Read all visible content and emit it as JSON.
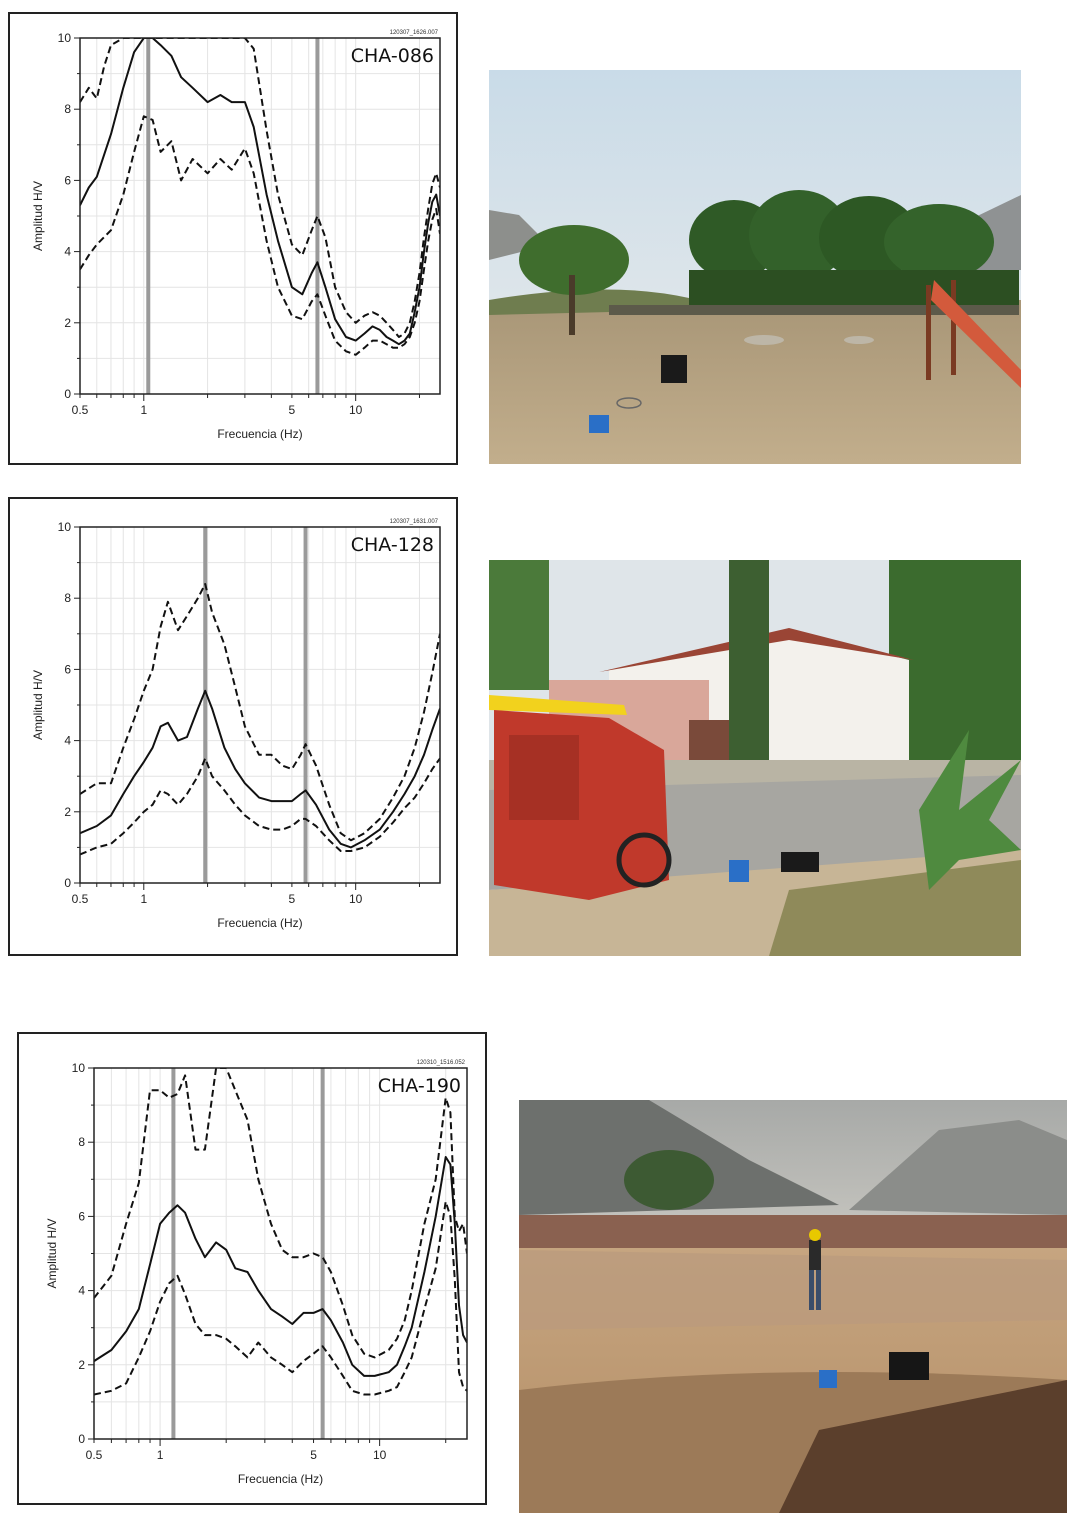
{
  "chart_data": [
    {
      "type": "line",
      "title": "CHA-086",
      "file_code": "120307_1626.007",
      "xlabel": "Frecuencia (Hz)",
      "ylabel": "Amplitud H/V",
      "xscale": "log",
      "xlim": [
        0.5,
        25
      ],
      "ylim": [
        0,
        10
      ],
      "xticks": [
        0.5,
        1,
        5,
        10
      ],
      "yticks": [
        0,
        2,
        4,
        6,
        8,
        10
      ],
      "vlines": [
        1.05,
        6.6
      ],
      "series": [
        {
          "style": "solid",
          "x": [
            0.5,
            0.55,
            0.6,
            0.7,
            0.8,
            0.9,
            1.0,
            1.1,
            1.2,
            1.35,
            1.5,
            1.7,
            2.0,
            2.3,
            2.6,
            3.0,
            3.3,
            3.8,
            4.3,
            5.0,
            5.6,
            6.2,
            6.6,
            7.2,
            8.0,
            9.0,
            10,
            11,
            12,
            13,
            14,
            15,
            16,
            17,
            18,
            19,
            20,
            21,
            22,
            23,
            24,
            25
          ],
          "y": [
            5.3,
            5.8,
            6.1,
            7.3,
            8.6,
            9.6,
            10,
            10,
            9.8,
            9.5,
            8.9,
            8.6,
            8.2,
            8.4,
            8.2,
            8.2,
            7.5,
            5.6,
            4.3,
            3.0,
            2.8,
            3.4,
            3.7,
            3.0,
            2.1,
            1.6,
            1.5,
            1.7,
            1.9,
            1.8,
            1.6,
            1.5,
            1.4,
            1.5,
            1.7,
            2.3,
            3.0,
            4.0,
            4.8,
            5.4,
            5.6,
            5.0
          ]
        },
        {
          "style": "dashed",
          "x": [
            0.5,
            0.55,
            0.6,
            0.65,
            0.7,
            0.8,
            0.9,
            1.0,
            1.1,
            1.3,
            1.5,
            1.7,
            2.0,
            2.3,
            2.6,
            3.0,
            3.3,
            3.8,
            4.3,
            5.0,
            5.6,
            6.2,
            6.6,
            7.2,
            8.0,
            9.0,
            10,
            11,
            12,
            13,
            14,
            15,
            16,
            17,
            18,
            19,
            20,
            21,
            22,
            23,
            24,
            25
          ],
          "y": [
            8.2,
            8.6,
            8.3,
            9.2,
            9.8,
            10,
            10,
            10,
            10,
            10,
            10,
            10,
            10,
            10,
            10,
            10,
            9.7,
            7.4,
            5.6,
            4.2,
            3.9,
            4.6,
            5.0,
            4.4,
            3.0,
            2.3,
            2.0,
            2.2,
            2.3,
            2.2,
            2.0,
            1.8,
            1.6,
            1.7,
            2.0,
            2.6,
            3.4,
            4.4,
            5.2,
            5.9,
            6.2,
            5.8
          ]
        },
        {
          "style": "dashed",
          "x": [
            0.5,
            0.55,
            0.6,
            0.7,
            0.8,
            0.9,
            1.0,
            1.1,
            1.2,
            1.35,
            1.5,
            1.7,
            2.0,
            2.3,
            2.6,
            3.0,
            3.3,
            3.8,
            4.3,
            5.0,
            5.6,
            6.2,
            6.6,
            7.2,
            8.0,
            9.0,
            10,
            11,
            12,
            13,
            14,
            15,
            16,
            17,
            18,
            19,
            20,
            21,
            22,
            23,
            24,
            25
          ],
          "y": [
            3.5,
            3.9,
            4.2,
            4.6,
            5.6,
            6.8,
            7.8,
            7.7,
            6.8,
            7.1,
            6.0,
            6.6,
            6.2,
            6.6,
            6.3,
            6.9,
            6.2,
            4.3,
            3.0,
            2.2,
            2.1,
            2.6,
            2.8,
            2.2,
            1.5,
            1.2,
            1.1,
            1.3,
            1.5,
            1.5,
            1.4,
            1.3,
            1.3,
            1.4,
            1.6,
            2.0,
            2.6,
            3.5,
            4.3,
            4.9,
            5.2,
            4.5
          ]
        }
      ]
    },
    {
      "type": "line",
      "title": "CHA-128",
      "file_code": "120307_1631.007",
      "xlabel": "Frecuencia (Hz)",
      "ylabel": "Amplitud H/V",
      "xscale": "log",
      "xlim": [
        0.5,
        25
      ],
      "ylim": [
        0,
        10
      ],
      "xticks": [
        0.5,
        1,
        5,
        10
      ],
      "yticks": [
        0,
        2,
        4,
        6,
        8,
        10
      ],
      "vlines": [
        1.95,
        5.8
      ],
      "series": [
        {
          "style": "solid",
          "x": [
            0.5,
            0.6,
            0.7,
            0.8,
            0.9,
            1.0,
            1.1,
            1.2,
            1.3,
            1.45,
            1.6,
            1.8,
            1.95,
            2.1,
            2.4,
            2.7,
            3.0,
            3.5,
            4.0,
            4.5,
            5.0,
            5.5,
            5.8,
            6.5,
            7.5,
            8.5,
            9.5,
            11,
            13,
            15,
            17,
            19,
            21,
            23,
            25
          ],
          "y": [
            1.4,
            1.6,
            1.9,
            2.5,
            3.0,
            3.4,
            3.8,
            4.4,
            4.5,
            4.0,
            4.1,
            4.9,
            5.4,
            4.9,
            3.8,
            3.2,
            2.8,
            2.4,
            2.3,
            2.3,
            2.3,
            2.5,
            2.6,
            2.2,
            1.5,
            1.1,
            1.0,
            1.2,
            1.5,
            2.0,
            2.5,
            3.0,
            3.6,
            4.3,
            4.9
          ]
        },
        {
          "style": "dashed",
          "x": [
            0.5,
            0.6,
            0.7,
            0.8,
            0.9,
            1.0,
            1.1,
            1.2,
            1.3,
            1.45,
            1.6,
            1.8,
            1.95,
            2.1,
            2.4,
            2.7,
            3.0,
            3.5,
            4.0,
            4.5,
            5.0,
            5.5,
            5.8,
            6.5,
            7.5,
            8.5,
            9.5,
            11,
            13,
            15,
            17,
            19,
            21,
            23,
            25
          ],
          "y": [
            2.5,
            2.8,
            2.8,
            3.8,
            4.6,
            5.4,
            6.0,
            7.2,
            7.9,
            7.1,
            7.5,
            8.0,
            8.4,
            7.6,
            6.7,
            5.5,
            4.4,
            3.6,
            3.6,
            3.3,
            3.2,
            3.6,
            3.9,
            3.3,
            2.2,
            1.4,
            1.2,
            1.4,
            1.8,
            2.4,
            3.0,
            3.8,
            4.8,
            5.9,
            7.0
          ]
        },
        {
          "style": "dashed",
          "x": [
            0.5,
            0.6,
            0.7,
            0.8,
            0.9,
            1.0,
            1.1,
            1.2,
            1.3,
            1.45,
            1.6,
            1.8,
            1.95,
            2.1,
            2.4,
            2.7,
            3.0,
            3.5,
            4.0,
            4.5,
            5.0,
            5.5,
            5.8,
            6.5,
            7.5,
            8.5,
            9.5,
            11,
            13,
            15,
            17,
            19,
            21,
            23,
            25
          ],
          "y": [
            0.8,
            1.0,
            1.1,
            1.4,
            1.7,
            2.0,
            2.2,
            2.6,
            2.5,
            2.2,
            2.5,
            3.0,
            3.5,
            3.0,
            2.6,
            2.2,
            1.9,
            1.6,
            1.5,
            1.5,
            1.6,
            1.8,
            1.8,
            1.6,
            1.2,
            0.9,
            0.9,
            1.0,
            1.3,
            1.7,
            2.1,
            2.4,
            2.8,
            3.2,
            3.5
          ]
        }
      ]
    },
    {
      "type": "line",
      "title": "CHA-190",
      "file_code": "120310_1516.052",
      "xlabel": "Frecuencia (Hz)",
      "ylabel": "Amplitud H/V",
      "xscale": "log",
      "xlim": [
        0.5,
        25
      ],
      "ylim": [
        0,
        10
      ],
      "xticks": [
        0.5,
        1,
        5,
        10
      ],
      "yticks": [
        0,
        2,
        4,
        6,
        8,
        10
      ],
      "vlines": [
        1.15,
        5.5
      ],
      "series": [
        {
          "style": "solid",
          "x": [
            0.5,
            0.6,
            0.7,
            0.8,
            0.9,
            1.0,
            1.1,
            1.2,
            1.3,
            1.45,
            1.6,
            1.8,
            2.0,
            2.2,
            2.5,
            2.8,
            3.2,
            3.6,
            4.0,
            4.5,
            5.0,
            5.5,
            6.0,
            6.8,
            7.5,
            8.5,
            9.5,
            11,
            12,
            13,
            14,
            16,
            18,
            20,
            21,
            22,
            23,
            24,
            25
          ],
          "y": [
            2.1,
            2.4,
            2.9,
            3.5,
            4.7,
            5.8,
            6.1,
            6.3,
            6.1,
            5.4,
            4.9,
            5.3,
            5.1,
            4.6,
            4.5,
            4.0,
            3.5,
            3.3,
            3.1,
            3.4,
            3.4,
            3.5,
            3.2,
            2.6,
            2.0,
            1.7,
            1.7,
            1.8,
            2.0,
            2.5,
            3.0,
            4.5,
            6.0,
            7.6,
            7.4,
            5.8,
            3.6,
            2.8,
            2.6
          ]
        },
        {
          "style": "dashed",
          "x": [
            0.5,
            0.6,
            0.7,
            0.8,
            0.9,
            1.0,
            1.1,
            1.2,
            1.3,
            1.45,
            1.6,
            1.8,
            2.0,
            2.2,
            2.5,
            2.8,
            3.2,
            3.6,
            4.0,
            4.5,
            5.0,
            5.5,
            6.0,
            6.8,
            7.5,
            8.5,
            9.5,
            11,
            12,
            13,
            14,
            16,
            18,
            20,
            21,
            22,
            23,
            24,
            25
          ],
          "y": [
            3.8,
            4.4,
            5.8,
            6.9,
            9.4,
            9.4,
            9.2,
            9.3,
            9.8,
            7.8,
            7.8,
            10,
            10,
            9.4,
            8.6,
            7.0,
            5.8,
            5.1,
            4.9,
            4.9,
            5.0,
            4.9,
            4.5,
            3.6,
            2.8,
            2.3,
            2.2,
            2.4,
            2.7,
            3.2,
            4.0,
            5.8,
            7.0,
            9.2,
            8.8,
            6.0,
            5.6,
            5.8,
            5.0
          ]
        },
        {
          "style": "dashed",
          "x": [
            0.5,
            0.6,
            0.7,
            0.8,
            0.9,
            1.0,
            1.1,
            1.2,
            1.3,
            1.45,
            1.6,
            1.8,
            2.0,
            2.2,
            2.5,
            2.8,
            3.2,
            3.6,
            4.0,
            4.5,
            5.0,
            5.5,
            6.0,
            6.8,
            7.5,
            8.5,
            9.5,
            11,
            12,
            13,
            14,
            16,
            18,
            20,
            21,
            22,
            23,
            24,
            25
          ],
          "y": [
            1.2,
            1.3,
            1.5,
            2.2,
            2.9,
            3.7,
            4.2,
            4.4,
            3.9,
            3.1,
            2.8,
            2.8,
            2.7,
            2.5,
            2.2,
            2.6,
            2.2,
            2.0,
            1.8,
            2.1,
            2.3,
            2.5,
            2.2,
            1.7,
            1.3,
            1.2,
            1.2,
            1.3,
            1.4,
            1.8,
            2.2,
            3.5,
            4.6,
            6.4,
            6.0,
            4.3,
            1.8,
            1.4,
            1.3
          ]
        }
      ]
    }
  ],
  "photos": [
    {
      "icon": "field-photo-park-icon"
    },
    {
      "icon": "field-photo-street-icon"
    },
    {
      "icon": "field-photo-quarry-icon"
    }
  ]
}
